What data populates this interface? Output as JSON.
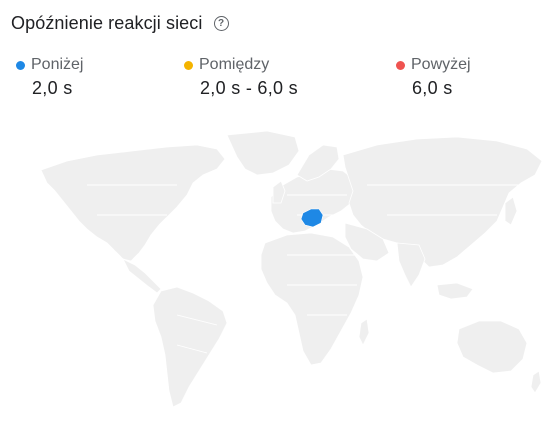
{
  "header": {
    "title": "Opóźnienie reakcji sieci",
    "help_icon": "help-circle-icon"
  },
  "legend": [
    {
      "label": "Poniżej",
      "value": "2,0 s",
      "color": "#1e88e5"
    },
    {
      "label": "Pomiędzy",
      "value": "2,0 s - 6,0 s",
      "color": "#f4b400"
    },
    {
      "label": "Powyżej",
      "value": "6,0 s",
      "color": "#ef5350"
    }
  ],
  "map": {
    "highlighted_country": "Poland",
    "highlight_color": "#1e88e5",
    "land_color": "#efefef"
  }
}
